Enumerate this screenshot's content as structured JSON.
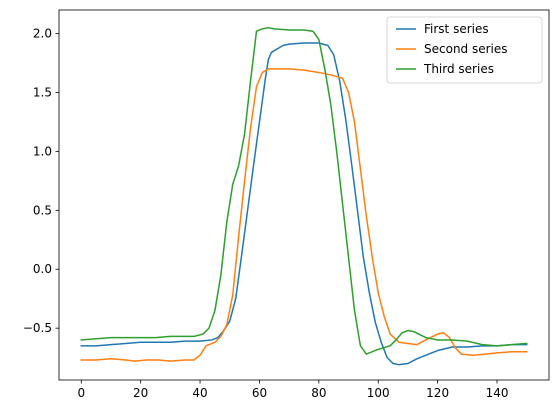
{
  "chart_data": {
    "type": "line",
    "title": "",
    "xlabel": "",
    "ylabel": "",
    "xlim": [
      -7.5,
      157.5
    ],
    "ylim": [
      -0.94,
      2.2
    ],
    "xticks": [
      0,
      20,
      40,
      60,
      80,
      100,
      120,
      140
    ],
    "yticks": [
      -0.5,
      0.0,
      0.5,
      1.0,
      1.5,
      2.0
    ],
    "xtick_labels": [
      "0",
      "20",
      "40",
      "60",
      "80",
      "100",
      "120",
      "140"
    ],
    "ytick_labels": [
      "−0.5",
      "0.0",
      "0.5",
      "1.0",
      "1.5",
      "2.0"
    ],
    "grid": false,
    "legend_position": "top-right",
    "series": [
      {
        "name": "First series",
        "color": "#1f77b4",
        "points": [
          [
            0,
            -0.65
          ],
          [
            5,
            -0.65
          ],
          [
            10,
            -0.64
          ],
          [
            15,
            -0.63
          ],
          [
            20,
            -0.62
          ],
          [
            25,
            -0.62
          ],
          [
            30,
            -0.62
          ],
          [
            35,
            -0.61
          ],
          [
            40,
            -0.61
          ],
          [
            44,
            -0.6
          ],
          [
            46,
            -0.58
          ],
          [
            48,
            -0.52
          ],
          [
            50,
            -0.44
          ],
          [
            52,
            -0.25
          ],
          [
            54,
            0.12
          ],
          [
            56,
            0.5
          ],
          [
            58,
            0.88
          ],
          [
            60,
            1.25
          ],
          [
            62,
            1.62
          ],
          [
            63,
            1.78
          ],
          [
            64,
            1.84
          ],
          [
            66,
            1.87
          ],
          [
            68,
            1.9
          ],
          [
            70,
            1.91
          ],
          [
            75,
            1.92
          ],
          [
            80,
            1.92
          ],
          [
            83,
            1.9
          ],
          [
            85,
            1.82
          ],
          [
            87,
            1.6
          ],
          [
            89,
            1.28
          ],
          [
            91,
            0.9
          ],
          [
            93,
            0.5
          ],
          [
            95,
            0.1
          ],
          [
            97,
            -0.2
          ],
          [
            99,
            -0.45
          ],
          [
            101,
            -0.62
          ],
          [
            103,
            -0.75
          ],
          [
            105,
            -0.8
          ],
          [
            107,
            -0.81
          ],
          [
            110,
            -0.8
          ],
          [
            113,
            -0.76
          ],
          [
            117,
            -0.72
          ],
          [
            120,
            -0.69
          ],
          [
            125,
            -0.66
          ],
          [
            130,
            -0.66
          ],
          [
            135,
            -0.65
          ],
          [
            140,
            -0.65
          ],
          [
            145,
            -0.64
          ],
          [
            150,
            -0.64
          ]
        ]
      },
      {
        "name": "Second series",
        "color": "#ff7f0e",
        "points": [
          [
            0,
            -0.77
          ],
          [
            5,
            -0.77
          ],
          [
            10,
            -0.76
          ],
          [
            15,
            -0.77
          ],
          [
            18,
            -0.78
          ],
          [
            22,
            -0.77
          ],
          [
            26,
            -0.77
          ],
          [
            30,
            -0.78
          ],
          [
            35,
            -0.77
          ],
          [
            38,
            -0.77
          ],
          [
            40,
            -0.73
          ],
          [
            42,
            -0.65
          ],
          [
            45,
            -0.62
          ],
          [
            47,
            -0.57
          ],
          [
            49,
            -0.47
          ],
          [
            51,
            -0.22
          ],
          [
            53,
            0.28
          ],
          [
            55,
            0.75
          ],
          [
            57,
            1.2
          ],
          [
            59,
            1.55
          ],
          [
            61,
            1.67
          ],
          [
            63,
            1.7
          ],
          [
            65,
            1.7
          ],
          [
            70,
            1.7
          ],
          [
            75,
            1.69
          ],
          [
            80,
            1.67
          ],
          [
            84,
            1.65
          ],
          [
            88,
            1.62
          ],
          [
            90,
            1.5
          ],
          [
            92,
            1.25
          ],
          [
            94,
            0.85
          ],
          [
            96,
            0.45
          ],
          [
            98,
            0.1
          ],
          [
            100,
            -0.2
          ],
          [
            102,
            -0.4
          ],
          [
            104,
            -0.55
          ],
          [
            107,
            -0.62
          ],
          [
            110,
            -0.63
          ],
          [
            113,
            -0.64
          ],
          [
            116,
            -0.6
          ],
          [
            120,
            -0.55
          ],
          [
            122,
            -0.54
          ],
          [
            124,
            -0.58
          ],
          [
            126,
            -0.67
          ],
          [
            128,
            -0.72
          ],
          [
            132,
            -0.73
          ],
          [
            136,
            -0.72
          ],
          [
            140,
            -0.71
          ],
          [
            145,
            -0.7
          ],
          [
            150,
            -0.7
          ]
        ]
      },
      {
        "name": "Third series",
        "color": "#2ca02c",
        "points": [
          [
            0,
            -0.6
          ],
          [
            5,
            -0.59
          ],
          [
            10,
            -0.58
          ],
          [
            15,
            -0.58
          ],
          [
            20,
            -0.58
          ],
          [
            25,
            -0.58
          ],
          [
            30,
            -0.57
          ],
          [
            35,
            -0.57
          ],
          [
            38,
            -0.57
          ],
          [
            41,
            -0.55
          ],
          [
            43,
            -0.5
          ],
          [
            45,
            -0.35
          ],
          [
            47,
            -0.05
          ],
          [
            49,
            0.4
          ],
          [
            51,
            0.72
          ],
          [
            53,
            0.88
          ],
          [
            55,
            1.15
          ],
          [
            57,
            1.6
          ],
          [
            59,
            2.02
          ],
          [
            61,
            2.04
          ],
          [
            63,
            2.05
          ],
          [
            65,
            2.04
          ],
          [
            70,
            2.03
          ],
          [
            75,
            2.03
          ],
          [
            78,
            2.02
          ],
          [
            80,
            1.95
          ],
          [
            82,
            1.7
          ],
          [
            84,
            1.4
          ],
          [
            86,
            1.0
          ],
          [
            88,
            0.55
          ],
          [
            90,
            0.1
          ],
          [
            92,
            -0.35
          ],
          [
            94,
            -0.65
          ],
          [
            96,
            -0.72
          ],
          [
            98,
            -0.7
          ],
          [
            100,
            -0.68
          ],
          [
            104,
            -0.65
          ],
          [
            106,
            -0.6
          ],
          [
            108,
            -0.54
          ],
          [
            110,
            -0.52
          ],
          [
            112,
            -0.53
          ],
          [
            116,
            -0.58
          ],
          [
            120,
            -0.6
          ],
          [
            125,
            -0.6
          ],
          [
            130,
            -0.61
          ],
          [
            135,
            -0.64
          ],
          [
            140,
            -0.65
          ],
          [
            145,
            -0.64
          ],
          [
            150,
            -0.63
          ]
        ]
      }
    ]
  }
}
